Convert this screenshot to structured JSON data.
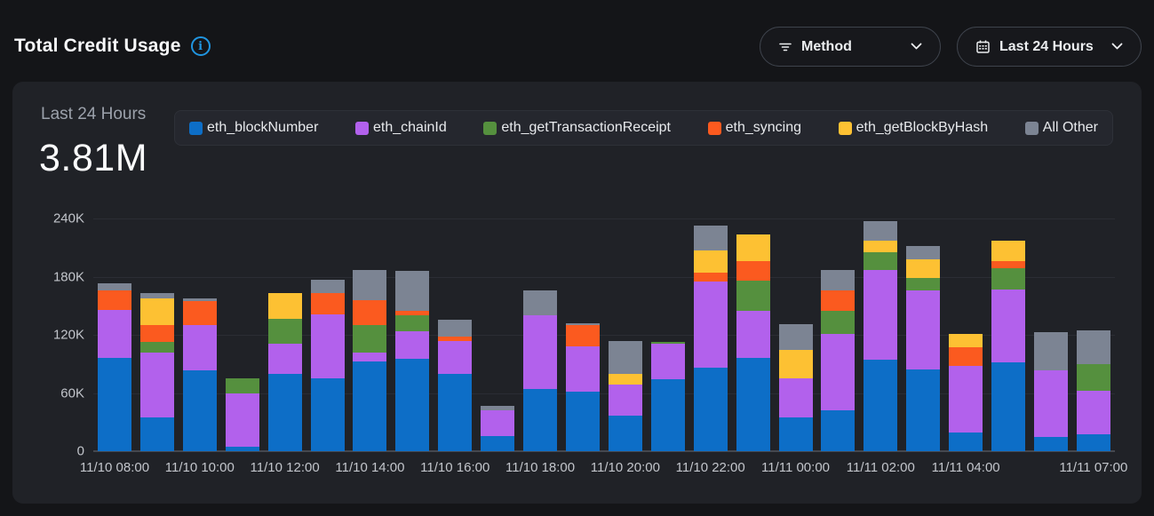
{
  "header": {
    "title": "Total Credit Usage",
    "info_icon": "info-icon",
    "method_filter": {
      "label": "Method",
      "icon": "filter-icon"
    },
    "range_filter": {
      "label": "Last 24 Hours",
      "icon": "calendar-icon"
    }
  },
  "panel": {
    "range_label": "Last 24 Hours",
    "total": "3.81M"
  },
  "colors": {
    "accent_blue": "#2095e0",
    "page_bg": "#141518",
    "panel_bg": "#202227",
    "legend_bg": "#25272e",
    "axis_text": "#c2c5cb"
  },
  "chart_data": {
    "type": "bar",
    "stacked": true,
    "title": "Total Credit Usage",
    "legend_position": "top",
    "grid": true,
    "unit": "K credits",
    "ylim_k": [
      0,
      240
    ],
    "yticks": [
      {
        "label": "0",
        "value": 0
      },
      {
        "label": "60K",
        "value": 60
      },
      {
        "label": "120K",
        "value": 120
      },
      {
        "label": "180K",
        "value": 180
      },
      {
        "label": "240K",
        "value": 240
      }
    ],
    "categories": [
      "11/10 08:00",
      "11/10 09:00",
      "11/10 10:00",
      "11/10 11:00",
      "11/10 12:00",
      "11/10 13:00",
      "11/10 14:00",
      "11/10 15:00",
      "11/10 16:00",
      "11/10 17:00",
      "11/10 18:00",
      "11/10 19:00",
      "11/10 20:00",
      "11/10 21:00",
      "11/10 22:00",
      "11/10 23:00",
      "11/11 00:00",
      "11/11 01:00",
      "11/11 02:00",
      "11/11 03:00",
      "11/11 04:00",
      "11/11 05:00",
      "11/11 06:00",
      "11/11 07:00"
    ],
    "x_tick_labels": {
      "0": "11/10 08:00",
      "2": "11/10 10:00",
      "4": "11/10 12:00",
      "6": "11/10 14:00",
      "8": "11/10 16:00",
      "10": "11/10 18:00",
      "12": "11/10 20:00",
      "14": "11/10 22:00",
      "16": "11/11 00:00",
      "18": "11/11 02:00",
      "20": "11/11 04:00",
      "23": "11/11 07:00"
    },
    "series": [
      {
        "name": "eth_blockNumber",
        "color": "#0d6ec7",
        "values_k": [
          96,
          35,
          83,
          5,
          80,
          75,
          93,
          95,
          80,
          16,
          64,
          61,
          37,
          74,
          86,
          96,
          35,
          42,
          94,
          84,
          19,
          92,
          15,
          17
        ]
      },
      {
        "name": "eth_chainId",
        "color": "#b261ec",
        "values_k": [
          50,
          67,
          47,
          55,
          31,
          66,
          9,
          29,
          34,
          26,
          76,
          47,
          32,
          37,
          89,
          49,
          40,
          79,
          93,
          82,
          69,
          75,
          68,
          45
        ]
      },
      {
        "name": "eth_getTransactionReceipt",
        "color": "#55903e",
        "values_k": [
          0,
          11,
          0,
          15,
          26,
          0,
          28,
          16,
          0,
          0,
          0,
          0,
          0,
          2,
          0,
          31,
          0,
          24,
          18,
          13,
          0,
          22,
          0,
          28
        ]
      },
      {
        "name": "eth_syncing",
        "color": "#fb5a1f",
        "values_k": [
          20,
          17,
          25,
          0,
          0,
          22,
          26,
          5,
          4,
          0,
          0,
          22,
          0,
          0,
          9,
          20,
          0,
          21,
          0,
          0,
          19,
          7,
          0,
          0
        ]
      },
      {
        "name": "eth_getBlockByHash",
        "color": "#fdc133",
        "values_k": [
          0,
          28,
          0,
          0,
          26,
          0,
          0,
          0,
          0,
          0,
          0,
          0,
          11,
          0,
          23,
          28,
          29,
          0,
          12,
          19,
          14,
          21,
          0,
          0
        ]
      },
      {
        "name": "All Other",
        "color": "#7c8493",
        "values_k": [
          7,
          5,
          3,
          0,
          0,
          14,
          31,
          41,
          18,
          5,
          26,
          2,
          34,
          0,
          26,
          0,
          27,
          21,
          20,
          14,
          0,
          0,
          40,
          35
        ]
      }
    ]
  }
}
